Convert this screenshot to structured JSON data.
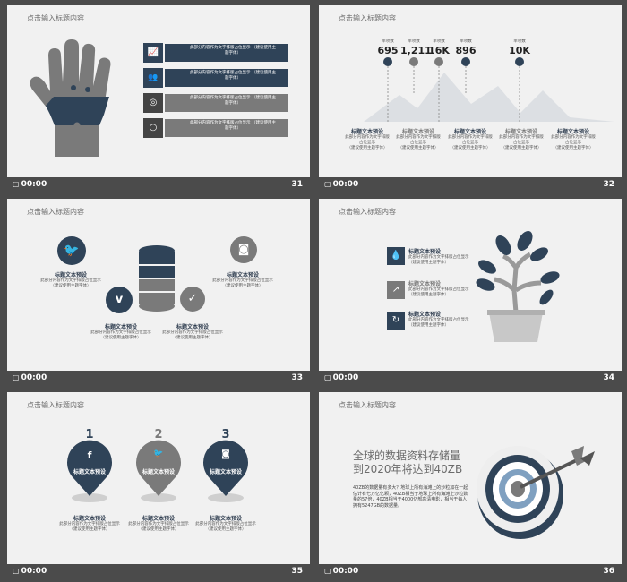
{
  "common": {
    "slide_title": "点击输入标题内容",
    "time": "00:00",
    "placeholder_heading": "标题文本预设",
    "placeholder_body": "此部分内容作为文字排版占位显示",
    "placeholder_hint": "（建议使用主题字体）",
    "long_placeholder": "此部分内容作为文字排版占位显示 （建议使用主题字体）"
  },
  "pages": {
    "p31": "31",
    "p32": "32",
    "p33": "33",
    "p34": "34",
    "p35": "35",
    "p36": "36"
  },
  "slide32": {
    "stats": [
      {
        "label": "单项数",
        "value": "695"
      },
      {
        "label": "单项数",
        "value": "1,211"
      },
      {
        "label": "单项数",
        "value": "16K"
      },
      {
        "label": "单项数",
        "value": "896"
      },
      {
        "label": "单项数",
        "value": "10K"
      }
    ]
  },
  "slide35": {
    "numbers": [
      "1",
      "2",
      "3"
    ]
  },
  "slide36": {
    "headline_1": "全球的数据资料存储量",
    "headline_2": "到2020年将达到40ZB",
    "body": "40ZB的数据量有多大？地球上所有海滩上的沙粒加在一起估计有七万亿亿颗，40ZB相当于地球上所有海滩上沙粒数量的57倍，40ZB相当于4000亿部高清电影，相当于每人拥有5247GB的数据量。"
  },
  "colors": {
    "navy": "#2f4358",
    "gray": "#7a7a7a",
    "light_gray": "#9a9a9a",
    "slide_bg": "#f1f1f1",
    "page_bg": "#4b4b4b"
  },
  "icons": [
    "hand",
    "chart-icon",
    "people-icon",
    "lifebuoy-icon",
    "bulb-icon",
    "mountains",
    "twitter-icon",
    "instagram-icon",
    "vimeo-icon",
    "check-icon",
    "database-icon",
    "tree-icon",
    "drop-icon",
    "share-icon",
    "refresh-icon",
    "facebook-icon",
    "target-icon",
    "arrow-icon",
    "clock-icon"
  ]
}
